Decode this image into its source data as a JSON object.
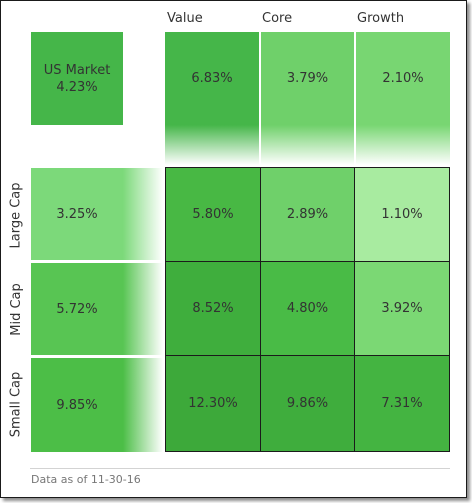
{
  "columns": [
    "Value",
    "Core",
    "Growth"
  ],
  "market": {
    "label": "US Market",
    "value": "4.23%"
  },
  "style_returns": [
    "6.83%",
    "3.79%",
    "2.10%"
  ],
  "rows": [
    {
      "label": "Large Cap",
      "size_return": "3.25%",
      "cells": [
        "5.80%",
        "2.89%",
        "1.10%"
      ]
    },
    {
      "label": "Mid Cap",
      "size_return": "5.72%",
      "cells": [
        "8.52%",
        "4.80%",
        "3.92%"
      ]
    },
    {
      "label": "Small Cap",
      "size_return": "9.85%",
      "cells": [
        "12.30%",
        "9.86%",
        "7.31%"
      ]
    }
  ],
  "colors": {
    "market": "#45b649",
    "style": [
      "#45b649",
      "#6fd06a",
      "#78d672"
    ],
    "size": [
      "#7cd97a",
      "#58c553",
      "#4cbe47"
    ],
    "cells": [
      [
        "#48b844",
        "#6fd06a",
        "#a8eba0"
      ],
      [
        "#3fae3d",
        "#49bb46",
        "#7bd874"
      ],
      [
        "#3da93a",
        "#3fad3d",
        "#44b441"
      ]
    ]
  },
  "footer": "Data as of 11-30-16"
}
